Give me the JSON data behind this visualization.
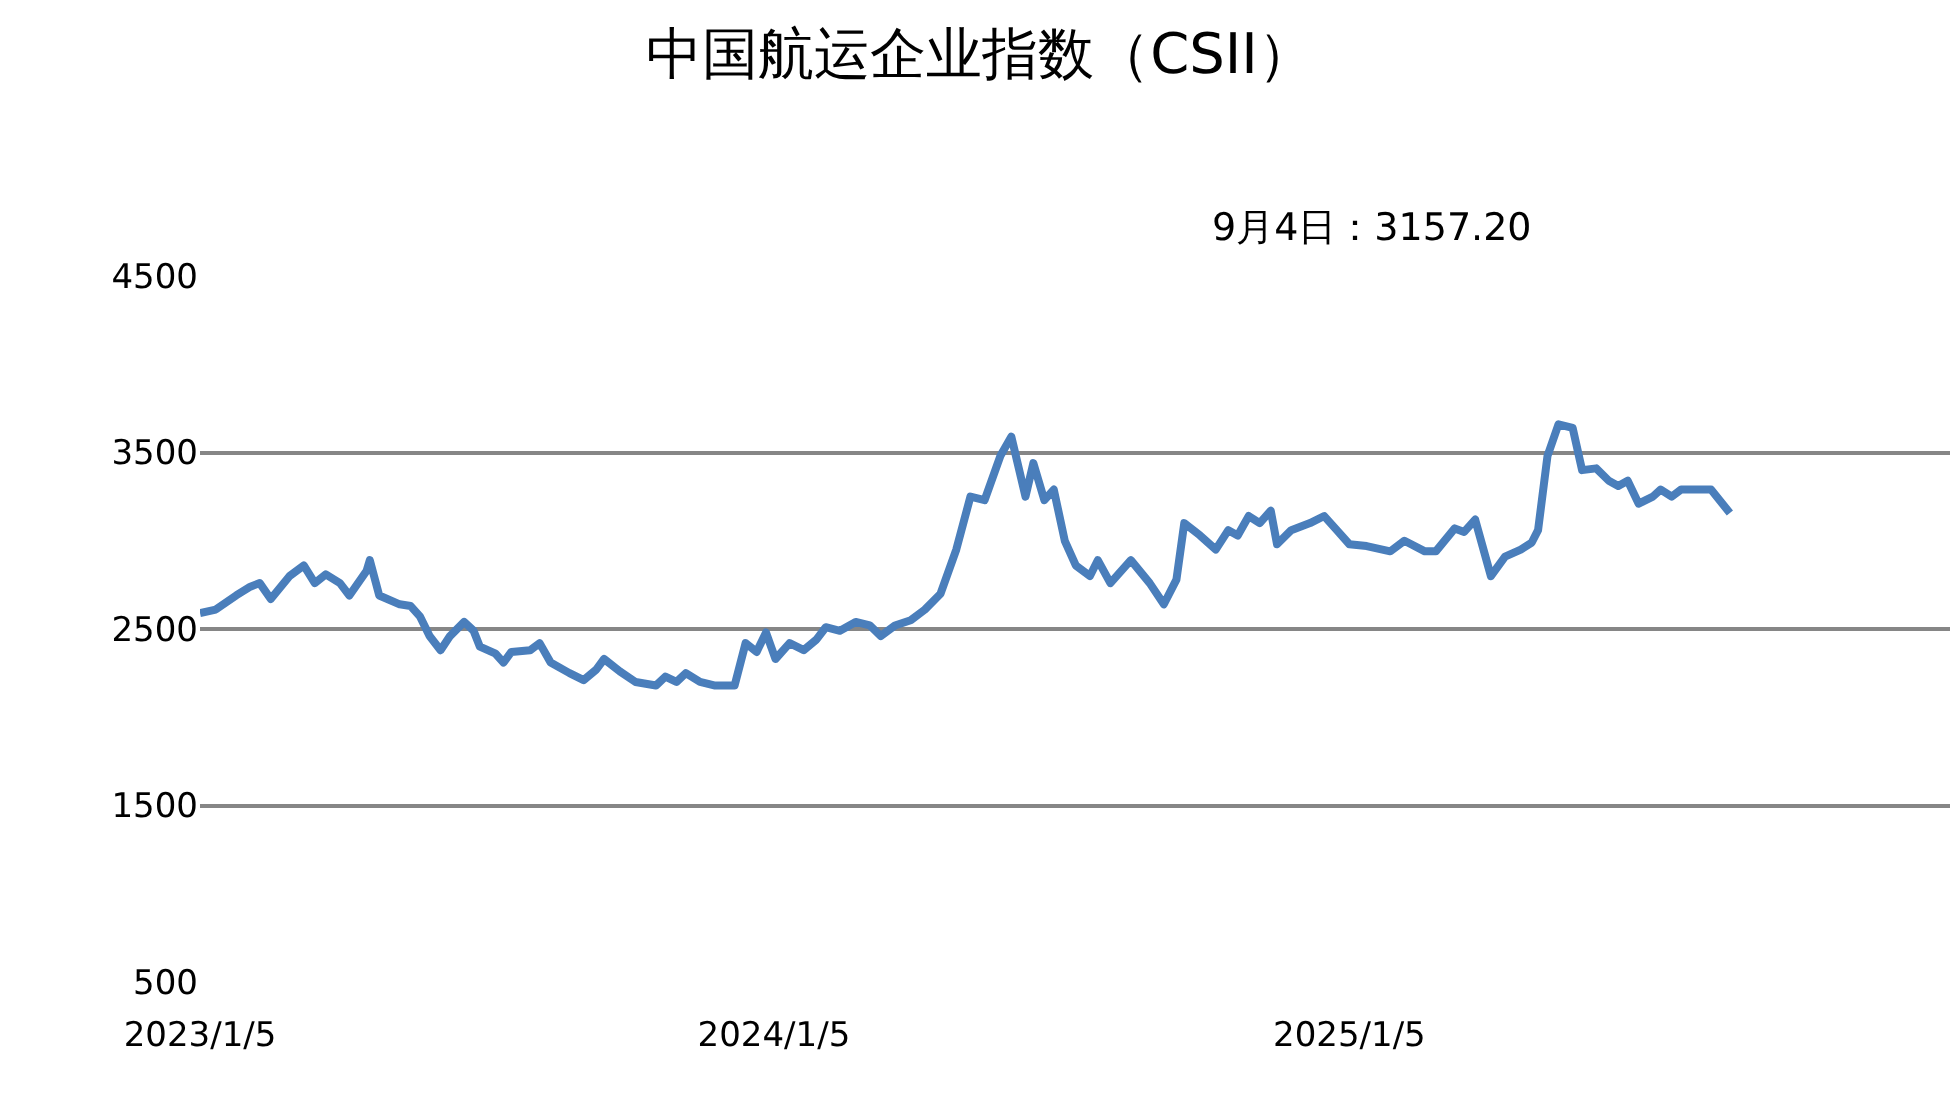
{
  "chart_data": {
    "type": "line",
    "title": "中国航运企业指数（CSII）",
    "annotations": [
      "9月4日：3157.20"
    ],
    "x": [
      "2023-01-05",
      "2023-01-15",
      "2023-01-28",
      "2023-02-06",
      "2023-02-12",
      "2023-02-19",
      "2023-03-03",
      "2023-03-12",
      "2023-03-19",
      "2023-03-26",
      "2023-04-04",
      "2023-04-10",
      "2023-04-21",
      "2023-04-23",
      "2023-04-29",
      "2023-05-12",
      "2023-05-19",
      "2023-05-25",
      "2023-05-31",
      "2023-06-07",
      "2023-06-13",
      "2023-06-22",
      "2023-06-28",
      "2023-07-02",
      "2023-07-12",
      "2023-07-17",
      "2023-07-22",
      "2023-08-03",
      "2023-08-09",
      "2023-08-16",
      "2023-08-28",
      "2023-09-06",
      "2023-09-14",
      "2023-09-19",
      "2023-09-29",
      "2023-10-09",
      "2023-10-22",
      "2023-10-28",
      "2023-11-04",
      "2023-11-10",
      "2023-11-19",
      "2023-11-28",
      "2023-12-11",
      "2023-12-18",
      "2023-12-25",
      "2023-12-31",
      "2024-01-06",
      "2024-01-15",
      "2024-01-24",
      "2024-02-01",
      "2024-02-07",
      "2024-02-16",
      "2024-02-26",
      "2024-03-06",
      "2024-03-13",
      "2024-03-22",
      "2024-04-01",
      "2024-04-10",
      "2024-04-20",
      "2024-04-30",
      "2024-05-09",
      "2024-05-18",
      "2024-05-28",
      "2024-06-04",
      "2024-06-13",
      "2024-06-18",
      "2024-06-25",
      "2024-07-01",
      "2024-07-08",
      "2024-07-15",
      "2024-07-24",
      "2024-07-29",
      "2024-08-06",
      "2024-08-19",
      "2024-08-31",
      "2024-09-09",
      "2024-09-17",
      "2024-09-22",
      "2024-10-02",
      "2024-10-12",
      "2024-10-20",
      "2024-10-26",
      "2024-11-02",
      "2024-11-09",
      "2024-11-16",
      "2024-11-20",
      "2024-11-29",
      "2024-12-11",
      "2024-12-20",
      "2024-12-28",
      "2025-01-05",
      "2025-01-16",
      "2025-01-31",
      "2025-02-09",
      "2025-02-22",
      "2025-03-01",
      "2025-03-13",
      "2025-03-19",
      "2025-03-26",
      "2025-04-05",
      "2025-04-14",
      "2025-04-24",
      "2025-05-01",
      "2025-05-05",
      "2025-05-11",
      "2025-05-18",
      "2025-05-27",
      "2025-06-02",
      "2025-06-11",
      "2025-06-19",
      "2025-06-25",
      "2025-07-01",
      "2025-07-08",
      "2025-07-17",
      "2025-07-22",
      "2025-07-29",
      "2025-08-04",
      "2025-08-23",
      "2025-09-04"
    ],
    "series": [
      {
        "color": "#4a7ebb",
        "values": [
          2590,
          2610,
          2690,
          2740,
          2760,
          2670,
          2800,
          2860,
          2760,
          2810,
          2760,
          2690,
          2830,
          2890,
          2690,
          2640,
          2630,
          2570,
          2460,
          2380,
          2460,
          2540,
          2490,
          2400,
          2360,
          2310,
          2370,
          2380,
          2420,
          2310,
          2250,
          2210,
          2270,
          2330,
          2260,
          2200,
          2180,
          2230,
          2200,
          2250,
          2200,
          2180,
          2180,
          2420,
          2370,
          2480,
          2330,
          2420,
          2380,
          2440,
          2510,
          2490,
          2540,
          2520,
          2460,
          2520,
          2550,
          2610,
          2700,
          2950,
          3250,
          3230,
          3480,
          3590,
          3250,
          3440,
          3230,
          3290,
          3000,
          2860,
          2800,
          2890,
          2760,
          2890,
          2760,
          2640,
          2780,
          3100,
          3030,
          2950,
          3060,
          3030,
          3140,
          3100,
          3170,
          2980,
          3060,
          3100,
          3140,
          3060,
          2980,
          2970,
          2940,
          3000,
          2940,
          2940,
          3070,
          3050,
          3120,
          2800,
          2910,
          2950,
          2990,
          3060,
          3480,
          3660,
          3640,
          3400,
          3410,
          3340,
          3310,
          3340,
          3210,
          3250,
          3290,
          3250,
          3290,
          3290,
          3157.2
        ]
      }
    ],
    "xlim": [
      "2023-01-05",
      "2026-01-22"
    ],
    "xticks": [
      {
        "value": "2023-01-05",
        "label": "2023/1/5"
      },
      {
        "value": "2024-01-05",
        "label": "2024/1/5"
      },
      {
        "value": "2025-01-05",
        "label": "2025/1/5"
      }
    ],
    "ylim": [
      500,
      4500
    ],
    "yticks": [
      500,
      1500,
      2500,
      3500,
      4500
    ],
    "grid": "y",
    "line_style": "solid",
    "marker": "none"
  }
}
